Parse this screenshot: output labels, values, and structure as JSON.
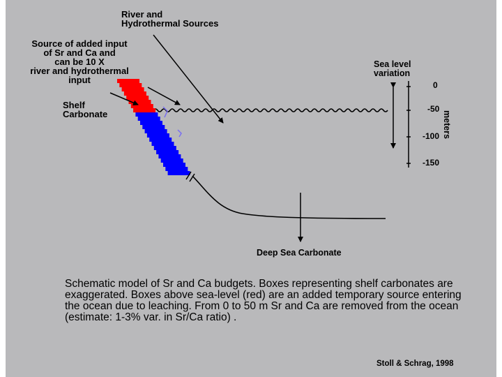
{
  "colors": {
    "background": "#b9b9bb",
    "above_sea_level": "#ff0000",
    "below_sea_level": "#0000ff",
    "accent_lines": "#7a6ff0",
    "ink": "#000000"
  },
  "labels": {
    "river_sources": "River and\nHydrothermal Sources",
    "added_input": "Source of added input\nof Sr and Ca and\ncan be 10 X\nriver and hydrothermal\ninput",
    "shelf_carbonate": "Shelf\nCarbonate",
    "sea_level_variation": "Sea level\nvariation",
    "deep_sea_carbonate": "Deep Sea Carbonate",
    "axis_unit": "meters"
  },
  "axis": {
    "ticks": [
      "0",
      "-50",
      "-100",
      "-150"
    ]
  },
  "caption": "Schematic model of Sr and Ca budgets. Boxes representing shelf carbonates are exaggerated. Boxes above sea-level (red) are an added temporary source entering the ocean due to leaching. From 0 to 50 m Sr and Ca are removed from the ocean (estimate: 1-3% var. in Sr/Ca ratio) .",
  "citation": "Stoll & Schrag, 1998"
}
